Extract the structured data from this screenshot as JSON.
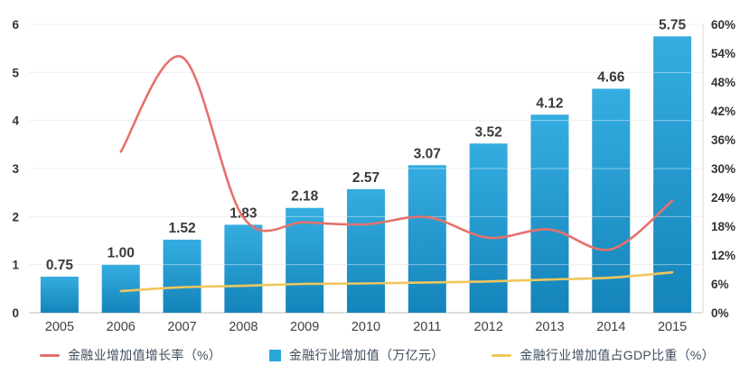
{
  "chart_data": {
    "type": "combo",
    "title": "",
    "categories": [
      "2005",
      "2006",
      "2007",
      "2008",
      "2009",
      "2010",
      "2011",
      "2012",
      "2013",
      "2014",
      "2015"
    ],
    "series": [
      {
        "name": "金融业增加值增长率（%）",
        "type": "line",
        "axis": "right",
        "color": "#e5716c",
        "start_index": 1,
        "values": [
          33.5,
          53.2,
          19.8,
          18.8,
          18.4,
          19.9,
          15.6,
          17.3,
          13.2,
          23.3
        ]
      },
      {
        "name": "金融行业增加值（万亿元）",
        "type": "bar",
        "axis": "left",
        "color": "#29a6da",
        "color_top": "#35ade0",
        "color_bottom": "#1484ba",
        "values": [
          0.75,
          1.0,
          1.52,
          1.83,
          2.18,
          2.57,
          3.07,
          3.52,
          4.12,
          4.66,
          5.75
        ],
        "labels": [
          "0.75",
          "1.00",
          "1.52",
          "1.83",
          "2.18",
          "2.57",
          "3.07",
          "3.52",
          "4.12",
          "4.66",
          "5.75"
        ]
      },
      {
        "name": "金融行业增加值占GDP比重（%）",
        "type": "line",
        "axis": "right",
        "color": "#f1c65c",
        "start_index": 1,
        "values": [
          4.5,
          5.3,
          5.6,
          6.0,
          6.1,
          6.3,
          6.5,
          6.9,
          7.3,
          8.4
        ]
      }
    ],
    "left_axis": {
      "min": 0,
      "max": 6,
      "labels": [
        "0",
        "1",
        "2",
        "3",
        "4",
        "5",
        "6"
      ]
    },
    "right_axis": {
      "min": 0,
      "max": 60,
      "labels": [
        "0%",
        "6%",
        "12%",
        "18%",
        "24%",
        "30%",
        "36%",
        "42%",
        "48%",
        "54%",
        "60%"
      ]
    },
    "grid": true,
    "legend_position": "bottom"
  },
  "styles": {
    "grid_color": "#e4e4e4",
    "axis_line_color": "#bdbdbd",
    "right_border_color": "#d9d9d9",
    "tick_label_color": "#333333",
    "x_label_color": "#3f3f3f",
    "bar_label_color": "#3a3a3a",
    "background": "#ffffff"
  }
}
